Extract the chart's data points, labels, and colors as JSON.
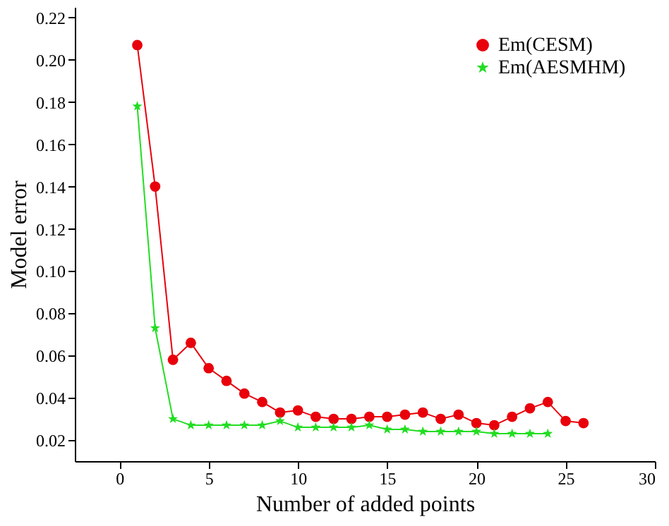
{
  "chart_data": {
    "type": "line",
    "xlabel": "Number of added points",
    "ylabel": "Model error",
    "xlim": [
      -2.5,
      30
    ],
    "xticks": [
      0,
      5,
      10,
      15,
      20,
      25,
      30
    ],
    "ylim": [
      0.01,
      0.225
    ],
    "yticks": [
      0.02,
      0.04,
      0.06,
      0.08,
      {
        "value": 0.1,
        "label": "0.10"
      },
      0.12,
      0.14,
      0.16,
      0.18,
      {
        "value": 0.2,
        "label": "0.20"
      },
      0.22
    ],
    "legend": "top right",
    "grid": false,
    "series": [
      {
        "name": "Em(CESM)",
        "color": "#e8000b",
        "marker": "circle",
        "x": [
          1,
          2,
          3,
          4,
          5,
          6,
          7,
          8,
          9,
          10,
          11,
          12,
          13,
          14,
          15,
          16,
          17,
          18,
          19,
          20,
          21,
          22,
          23,
          24,
          25,
          26
        ],
        "values": [
          0.207,
          0.14,
          0.058,
          0.066,
          0.054,
          0.048,
          0.042,
          0.038,
          0.033,
          0.034,
          0.031,
          0.03,
          0.03,
          0.031,
          0.031,
          0.032,
          0.033,
          0.03,
          0.032,
          0.028,
          0.027,
          0.031,
          0.035,
          0.038,
          0.029,
          0.028
        ]
      },
      {
        "name": "Em(AESMHM)",
        "color": "#22dd22",
        "marker": "star",
        "x": [
          1,
          2,
          3,
          4,
          5,
          6,
          7,
          8,
          9,
          10,
          11,
          12,
          13,
          14,
          15,
          16,
          17,
          18,
          19,
          20,
          21,
          22,
          23,
          24
        ],
        "values": [
          0.178,
          0.073,
          0.03,
          0.027,
          0.027,
          0.027,
          0.027,
          0.027,
          0.029,
          0.026,
          0.026,
          0.026,
          0.026,
          0.027,
          0.025,
          0.025,
          0.024,
          0.024,
          0.024,
          0.024,
          0.023,
          0.023,
          0.023,
          0.023
        ]
      }
    ]
  }
}
